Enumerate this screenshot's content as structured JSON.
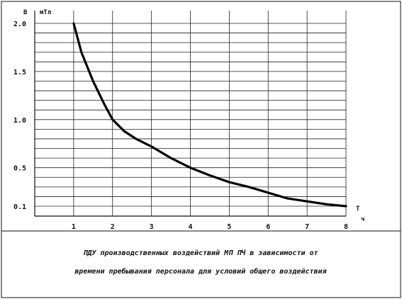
{
  "chart_data": {
    "type": "line",
    "ylabel": "B",
    "yunit": "мТл",
    "xlabel": "T",
    "xunit": "ч",
    "xlim": [
      0,
      8
    ],
    "ylim": [
      0,
      2.0
    ],
    "x_ticks": [
      "1",
      "2",
      "3",
      "4",
      "5",
      "6",
      "7",
      "8"
    ],
    "y_ticks": [
      {
        "label": "2.0",
        "value": 2.0
      },
      {
        "label": "1.5",
        "value": 1.5
      },
      {
        "label": "1.0",
        "value": 1.0
      },
      {
        "label": "0.5",
        "value": 0.5
      },
      {
        "label": "0.1",
        "value": 0.1
      }
    ],
    "grid": true,
    "series": [
      {
        "values": [
          [
            1.0,
            2.0
          ],
          [
            1.2,
            1.7
          ],
          [
            1.5,
            1.4
          ],
          [
            1.8,
            1.15
          ],
          [
            2.0,
            1.0
          ],
          [
            2.3,
            0.88
          ],
          [
            2.6,
            0.8
          ],
          [
            3.0,
            0.72
          ],
          [
            3.5,
            0.6
          ],
          [
            4.0,
            0.5
          ],
          [
            4.5,
            0.42
          ],
          [
            5.0,
            0.35
          ],
          [
            5.5,
            0.3
          ],
          [
            6.0,
            0.24
          ],
          [
            6.5,
            0.18
          ],
          [
            7.0,
            0.15
          ],
          [
            7.5,
            0.12
          ],
          [
            8.0,
            0.1
          ]
        ]
      }
    ],
    "caption_line1": "ПДУ производственных воздействий  МП ПЧ  в  зависимости  от",
    "caption_line2": "времени пребывания персонала для условий общего воздействия"
  }
}
